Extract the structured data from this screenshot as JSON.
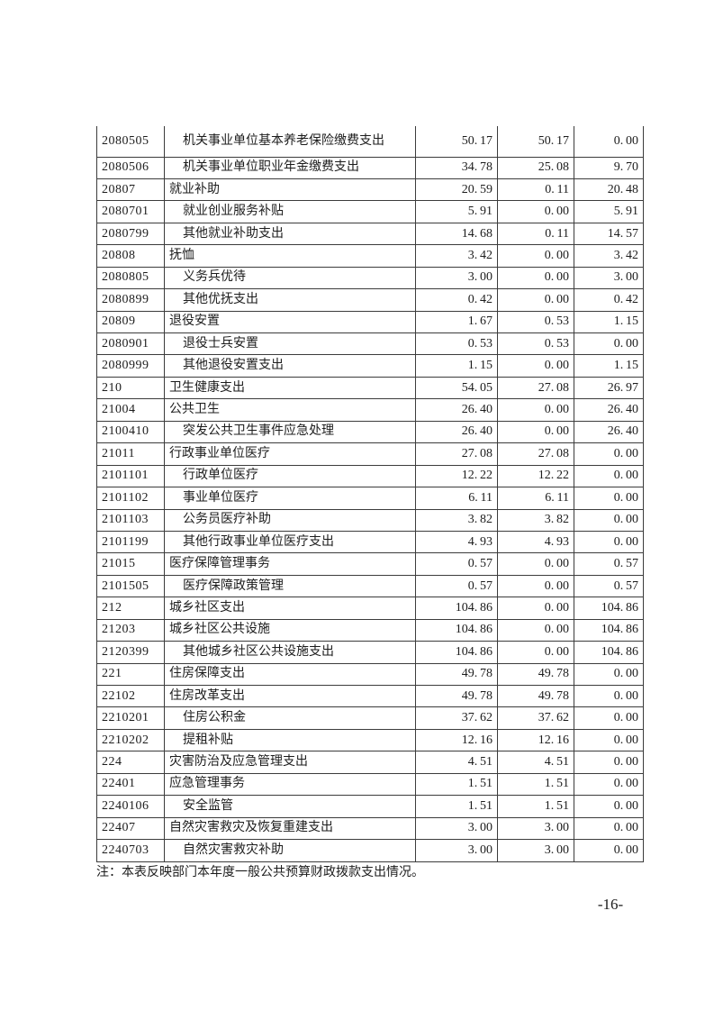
{
  "page": {
    "note": "注：本表反映部门本年度一般公共预算财政拨款支出情况。",
    "page_number": "-16-"
  },
  "table": {
    "rows": [
      {
        "code": "2080505",
        "name": "机关事业单位基本养老保险缴费支出",
        "indent": 1,
        "values": [
          "50.17",
          "50.17",
          "0.00"
        ]
      },
      {
        "code": "2080506",
        "name": "机关事业单位职业年金缴费支出",
        "indent": 1,
        "values": [
          "34.78",
          "25.08",
          "9.70"
        ]
      },
      {
        "code": "20807",
        "name": "就业补助",
        "indent": 0,
        "values": [
          "20.59",
          "0.11",
          "20.48"
        ]
      },
      {
        "code": "2080701",
        "name": "就业创业服务补贴",
        "indent": 1,
        "values": [
          "5.91",
          "0.00",
          "5.91"
        ]
      },
      {
        "code": "2080799",
        "name": "其他就业补助支出",
        "indent": 1,
        "values": [
          "14.68",
          "0.11",
          "14.57"
        ]
      },
      {
        "code": "20808",
        "name": "抚恤",
        "indent": 0,
        "values": [
          "3.42",
          "0.00",
          "3.42"
        ]
      },
      {
        "code": "2080805",
        "name": "义务兵优待",
        "indent": 1,
        "values": [
          "3.00",
          "0.00",
          "3.00"
        ]
      },
      {
        "code": "2080899",
        "name": "其他优抚支出",
        "indent": 1,
        "values": [
          "0.42",
          "0.00",
          "0.42"
        ]
      },
      {
        "code": "20809",
        "name": "退役安置",
        "indent": 0,
        "values": [
          "1.67",
          "0.53",
          "1.15"
        ]
      },
      {
        "code": "2080901",
        "name": "退役士兵安置",
        "indent": 1,
        "values": [
          "0.53",
          "0.53",
          "0.00"
        ]
      },
      {
        "code": "2080999",
        "name": "其他退役安置支出",
        "indent": 1,
        "values": [
          "1.15",
          "0.00",
          "1.15"
        ]
      },
      {
        "code": "210",
        "name": "卫生健康支出",
        "indent": 0,
        "values": [
          "54.05",
          "27.08",
          "26.97"
        ]
      },
      {
        "code": "21004",
        "name": "公共卫生",
        "indent": 0,
        "values": [
          "26.40",
          "0.00",
          "26.40"
        ]
      },
      {
        "code": "2100410",
        "name": "突发公共卫生事件应急处理",
        "indent": 1,
        "values": [
          "26.40",
          "0.00",
          "26.40"
        ]
      },
      {
        "code": "21011",
        "name": "行政事业单位医疗",
        "indent": 0,
        "values": [
          "27.08",
          "27.08",
          "0.00"
        ]
      },
      {
        "code": "2101101",
        "name": "行政单位医疗",
        "indent": 1,
        "values": [
          "12.22",
          "12.22",
          "0.00"
        ]
      },
      {
        "code": "2101102",
        "name": "事业单位医疗",
        "indent": 1,
        "values": [
          "6.11",
          "6.11",
          "0.00"
        ]
      },
      {
        "code": "2101103",
        "name": "公务员医疗补助",
        "indent": 1,
        "values": [
          "3.82",
          "3.82",
          "0.00"
        ]
      },
      {
        "code": "2101199",
        "name": "其他行政事业单位医疗支出",
        "indent": 1,
        "values": [
          "4.93",
          "4.93",
          "0.00"
        ]
      },
      {
        "code": "21015",
        "name": "医疗保障管理事务",
        "indent": 0,
        "values": [
          "0.57",
          "0.00",
          "0.57"
        ]
      },
      {
        "code": "2101505",
        "name": "医疗保障政策管理",
        "indent": 1,
        "values": [
          "0.57",
          "0.00",
          "0.57"
        ]
      },
      {
        "code": "212",
        "name": "城乡社区支出",
        "indent": 0,
        "values": [
          "104.86",
          "0.00",
          "104.86"
        ]
      },
      {
        "code": "21203",
        "name": "城乡社区公共设施",
        "indent": 0,
        "values": [
          "104.86",
          "0.00",
          "104.86"
        ]
      },
      {
        "code": "2120399",
        "name": "其他城乡社区公共设施支出",
        "indent": 1,
        "values": [
          "104.86",
          "0.00",
          "104.86"
        ]
      },
      {
        "code": "221",
        "name": "住房保障支出",
        "indent": 0,
        "values": [
          "49.78",
          "49.78",
          "0.00"
        ]
      },
      {
        "code": "22102",
        "name": "住房改革支出",
        "indent": 0,
        "values": [
          "49.78",
          "49.78",
          "0.00"
        ]
      },
      {
        "code": "2210201",
        "name": "住房公积金",
        "indent": 1,
        "values": [
          "37.62",
          "37.62",
          "0.00"
        ]
      },
      {
        "code": "2210202",
        "name": "提租补贴",
        "indent": 1,
        "values": [
          "12.16",
          "12.16",
          "0.00"
        ]
      },
      {
        "code": "224",
        "name": "灾害防治及应急管理支出",
        "indent": 0,
        "values": [
          "4.51",
          "4.51",
          "0.00"
        ]
      },
      {
        "code": "22401",
        "name": "应急管理事务",
        "indent": 0,
        "values": [
          "1.51",
          "1.51",
          "0.00"
        ]
      },
      {
        "code": "2240106",
        "name": "安全监管",
        "indent": 1,
        "values": [
          "1.51",
          "1.51",
          "0.00"
        ]
      },
      {
        "code": "22407",
        "name": "自然灾害救灾及恢复重建支出",
        "indent": 0,
        "values": [
          "3.00",
          "3.00",
          "0.00"
        ]
      },
      {
        "code": "2240703",
        "name": "自然灾害救灾补助",
        "indent": 1,
        "values": [
          "3.00",
          "3.00",
          "0.00"
        ]
      }
    ]
  }
}
